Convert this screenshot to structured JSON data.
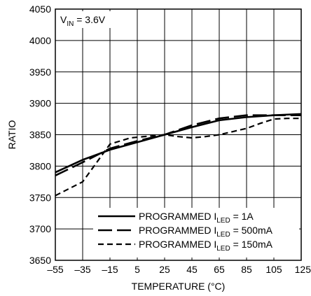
{
  "chart_data": {
    "type": "line",
    "xlabel": "TEMPERATURE (°C)",
    "ylabel": "RATIO",
    "xlim": [
      -55,
      125
    ],
    "ylim": [
      3650,
      4050
    ],
    "x_ticks": [
      -55,
      -35,
      -15,
      5,
      25,
      45,
      65,
      85,
      105,
      125
    ],
    "y_ticks": [
      3650,
      3700,
      3750,
      3800,
      3850,
      3900,
      3950,
      4000,
      4050
    ],
    "grid": true,
    "annotation": {
      "main": "V",
      "sub": "IN",
      "rest": " = 3.6V"
    },
    "legend_position": "bottom-right",
    "series": [
      {
        "name": "PROGRAMMED ILED = 1A",
        "legend": {
          "main": "PROGRAMMED I",
          "sub": "LED",
          "rest": " = 1A"
        },
        "style": "solid",
        "x": [
          -55,
          -35,
          -15,
          5,
          25,
          45,
          65,
          85,
          105,
          125
        ],
        "y": [
          3790,
          3810,
          3826,
          3838,
          3850,
          3862,
          3873,
          3878,
          3881,
          3883
        ]
      },
      {
        "name": "PROGRAMMED ILED = 500mA",
        "legend": {
          "main": "PROGRAMMED I",
          "sub": "LED",
          "rest": " = 500mA"
        },
        "style": "longdash",
        "x": [
          -55,
          -35,
          -15,
          5,
          25,
          45,
          65,
          85,
          105,
          125
        ],
        "y": [
          3785,
          3806,
          3828,
          3840,
          3850,
          3865,
          3876,
          3881,
          3881,
          3881
        ]
      },
      {
        "name": "PROGRAMMED ILED = 150mA",
        "legend": {
          "main": "PROGRAMMED I",
          "sub": "LED",
          "rest": " = 150mA"
        },
        "style": "shortdash",
        "x": [
          -55,
          -35,
          -15,
          0,
          15,
          25,
          35,
          45,
          55,
          65,
          75,
          85,
          95,
          105,
          115,
          125
        ],
        "y": [
          3753,
          3775,
          3835,
          3845,
          3848,
          3850,
          3847,
          3845,
          3847,
          3850,
          3855,
          3860,
          3868,
          3875,
          3876,
          3876
        ]
      }
    ]
  }
}
